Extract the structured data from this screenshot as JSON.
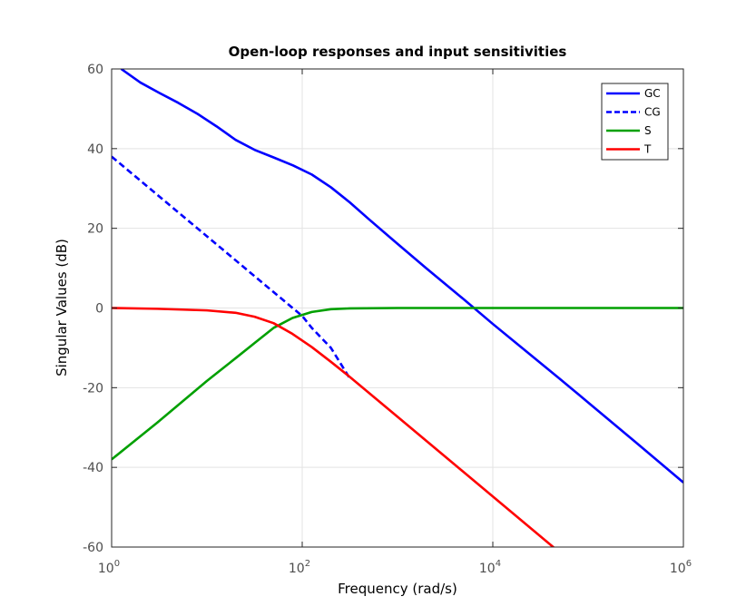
{
  "chart_data": {
    "type": "line",
    "title": "Open-loop responses and input sensitivities",
    "xlabel": "Frequency (rad/s)",
    "ylabel": "Singular Values (dB)",
    "xscale": "log",
    "xlim": [
      1,
      1000000
    ],
    "ylim": [
      -60,
      60
    ],
    "grid": true,
    "legend_position": "top-right",
    "x_ticks": [
      {
        "value": 1,
        "base": "10",
        "exp": "0"
      },
      {
        "value": 100,
        "base": "10",
        "exp": "2"
      },
      {
        "value": 10000,
        "base": "10",
        "exp": "4"
      },
      {
        "value": 1000000,
        "base": "10",
        "exp": "6"
      }
    ],
    "y_ticks": [
      {
        "value": 60,
        "label": "60"
      },
      {
        "value": 40,
        "label": "40"
      },
      {
        "value": 20,
        "label": "20"
      },
      {
        "value": 0,
        "label": "0"
      },
      {
        "value": -20,
        "label": "-20"
      },
      {
        "value": -40,
        "label": "-40"
      },
      {
        "value": -60,
        "label": "-60"
      }
    ],
    "series": [
      {
        "name": "GC",
        "color": "#0000ff",
        "dash": "solid",
        "x": [
          1.26,
          2,
          3.16,
          5,
          8,
          12.6,
          20,
          31.6,
          50,
          80,
          126,
          200,
          316,
          500,
          1000,
          2000,
          5000,
          10000,
          50000,
          100000,
          316000,
          1000000
        ],
        "y": [
          60.0,
          56.6,
          54.0,
          51.5,
          48.7,
          45.6,
          42.2,
          39.7,
          37.8,
          35.8,
          33.5,
          30.3,
          26.5,
          22.3,
          16.1,
          10.0,
          2.1,
          -4.0,
          -17.7,
          -23.7,
          -33.7,
          -43.8
        ]
      },
      {
        "name": "CG",
        "color": "#0000ff",
        "dash": "dashed",
        "x": [
          1,
          10,
          50,
          100,
          126,
          200,
          316
        ],
        "y": [
          38.0,
          18.0,
          4.0,
          -2.0,
          -5.0,
          -10.0,
          -17.7
        ]
      },
      {
        "name": "S",
        "color": "#00a000",
        "dash": "solid",
        "x": [
          1,
          3,
          10,
          20,
          31.6,
          50,
          79,
          126,
          200,
          316,
          1000,
          10000,
          1000000
        ],
        "y": [
          -38.0,
          -28.8,
          -18.3,
          -12.6,
          -8.8,
          -5.0,
          -2.5,
          -1.0,
          -0.3,
          -0.1,
          0.0,
          0.0,
          0.0
        ]
      },
      {
        "name": "T",
        "color": "#ff0000",
        "dash": "solid",
        "x": [
          1,
          3,
          10,
          20,
          31.6,
          50,
          79,
          126,
          200,
          316,
          1000,
          10000,
          50000
        ],
        "y": [
          0.0,
          -0.2,
          -0.6,
          -1.2,
          -2.2,
          -3.8,
          -6.5,
          -9.8,
          -13.5,
          -17.3,
          -27.3,
          -47.3,
          -61.3
        ]
      }
    ]
  }
}
